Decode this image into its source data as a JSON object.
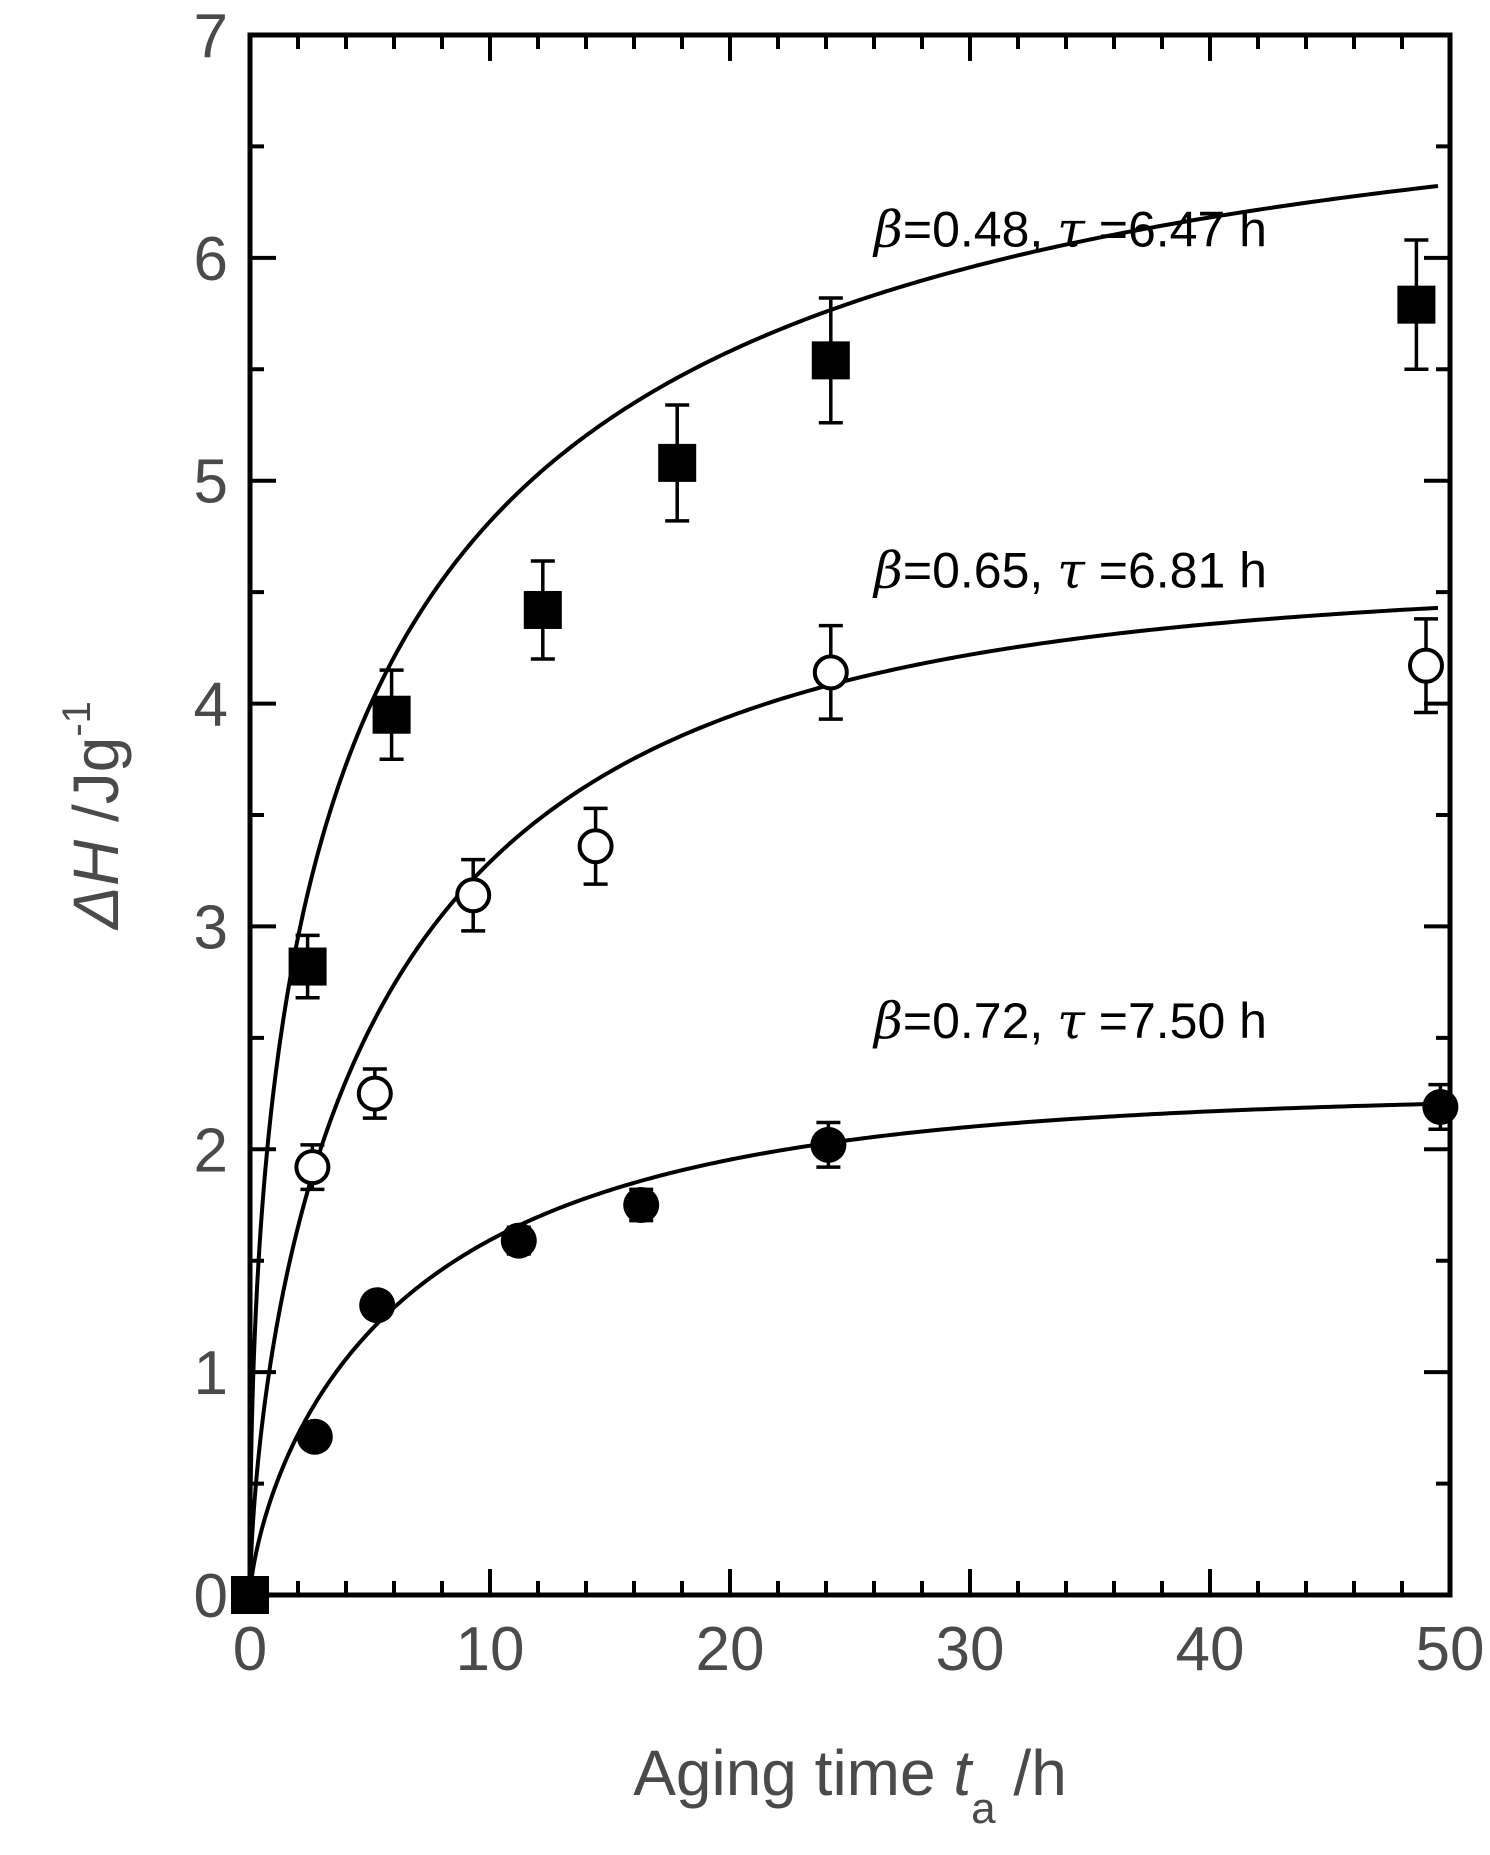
{
  "chart_data": {
    "type": "scatter",
    "title": "",
    "xlabel": {
      "main": "Aging time ",
      "var": "t",
      "sub": "a",
      "unit": " /h"
    },
    "ylabel": {
      "main": "ΔH",
      "unit": " /Jg",
      "sup": "-1"
    },
    "xlim": [
      0,
      50
    ],
    "ylim": [
      0,
      7
    ],
    "xticks": [
      0,
      10,
      20,
      30,
      40,
      50
    ],
    "yticks": [
      0,
      1,
      2,
      3,
      4,
      5,
      6,
      7
    ],
    "x_minor_step": 2,
    "y_minor_step": 0.5,
    "grid": false,
    "series": [
      {
        "marker": "filled-square",
        "fit": {
          "beta": 0.48,
          "tau": 6.47,
          "dh_inf": 6.8
        },
        "annotation": {
          "beta_text": "=0.48,",
          "tau_text": "=6.47 h",
          "anchor": [
            26,
            6.05
          ]
        },
        "points": [
          {
            "x": 0,
            "y": 0,
            "err": 0
          },
          {
            "x": 2.4,
            "y": 2.82,
            "err": 0.14
          },
          {
            "x": 5.9,
            "y": 3.95,
            "err": 0.2
          },
          {
            "x": 12.2,
            "y": 4.42,
            "err": 0.22
          },
          {
            "x": 17.8,
            "y": 5.08,
            "err": 0.26
          },
          {
            "x": 24.2,
            "y": 5.54,
            "err": 0.28
          },
          {
            "x": 48.6,
            "y": 5.79,
            "err": 0.29
          }
        ]
      },
      {
        "marker": "open-circle",
        "fit": {
          "beta": 0.65,
          "tau": 6.81,
          "dh_inf": 4.55
        },
        "annotation": {
          "beta_text": "=0.65,",
          "tau_text": "=6.81 h",
          "anchor": [
            26,
            4.52
          ]
        },
        "points": [
          {
            "x": 0,
            "y": 0,
            "err": 0
          },
          {
            "x": 2.6,
            "y": 1.92,
            "err": 0.1
          },
          {
            "x": 5.2,
            "y": 2.25,
            "err": 0.11
          },
          {
            "x": 9.3,
            "y": 3.14,
            "err": 0.16
          },
          {
            "x": 14.4,
            "y": 3.36,
            "err": 0.17
          },
          {
            "x": 24.2,
            "y": 4.14,
            "err": 0.21
          },
          {
            "x": 49.0,
            "y": 4.17,
            "err": 0.21
          }
        ]
      },
      {
        "marker": "filled-circle",
        "fit": {
          "beta": 0.72,
          "tau": 7.5,
          "dh_inf": 2.25
        },
        "annotation": {
          "beta_text": "=0.72,",
          "tau_text": "=7.50 h",
          "anchor": [
            26,
            2.5
          ]
        },
        "points": [
          {
            "x": 0,
            "y": 0,
            "err": 0
          },
          {
            "x": 2.7,
            "y": 0.71,
            "err": 0.04
          },
          {
            "x": 5.3,
            "y": 1.3,
            "err": 0.05
          },
          {
            "x": 11.2,
            "y": 1.59,
            "err": 0.06
          },
          {
            "x": 16.3,
            "y": 1.75,
            "err": 0.07
          },
          {
            "x": 24.1,
            "y": 2.02,
            "err": 0.1
          },
          {
            "x": 49.6,
            "y": 2.19,
            "err": 0.1
          }
        ]
      }
    ]
  }
}
